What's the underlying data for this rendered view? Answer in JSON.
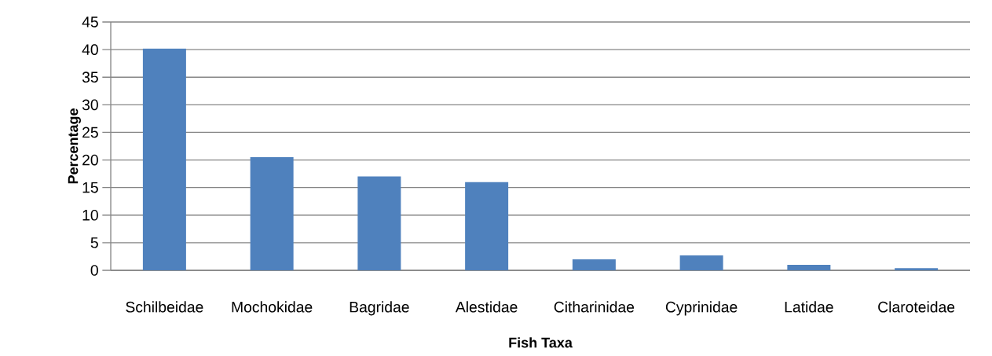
{
  "chart_data": {
    "type": "bar",
    "xlabel": "Fish Taxa",
    "ylabel": "Percentage",
    "categories": [
      "Schilbeidae",
      "Mochokidae",
      "Bagridae",
      "Alestidae",
      "Citharinidae",
      "Cyprinidae",
      "Latidae",
      "Claroteidae"
    ],
    "values": [
      40.2,
      20.5,
      17.0,
      16.0,
      2.0,
      2.7,
      1.0,
      0.4
    ],
    "color": "#4f81bd",
    "ylim": [
      0,
      45
    ],
    "yticks": [
      0,
      5,
      10,
      15,
      20,
      25,
      30,
      35,
      40,
      45
    ],
    "grid": "y"
  }
}
